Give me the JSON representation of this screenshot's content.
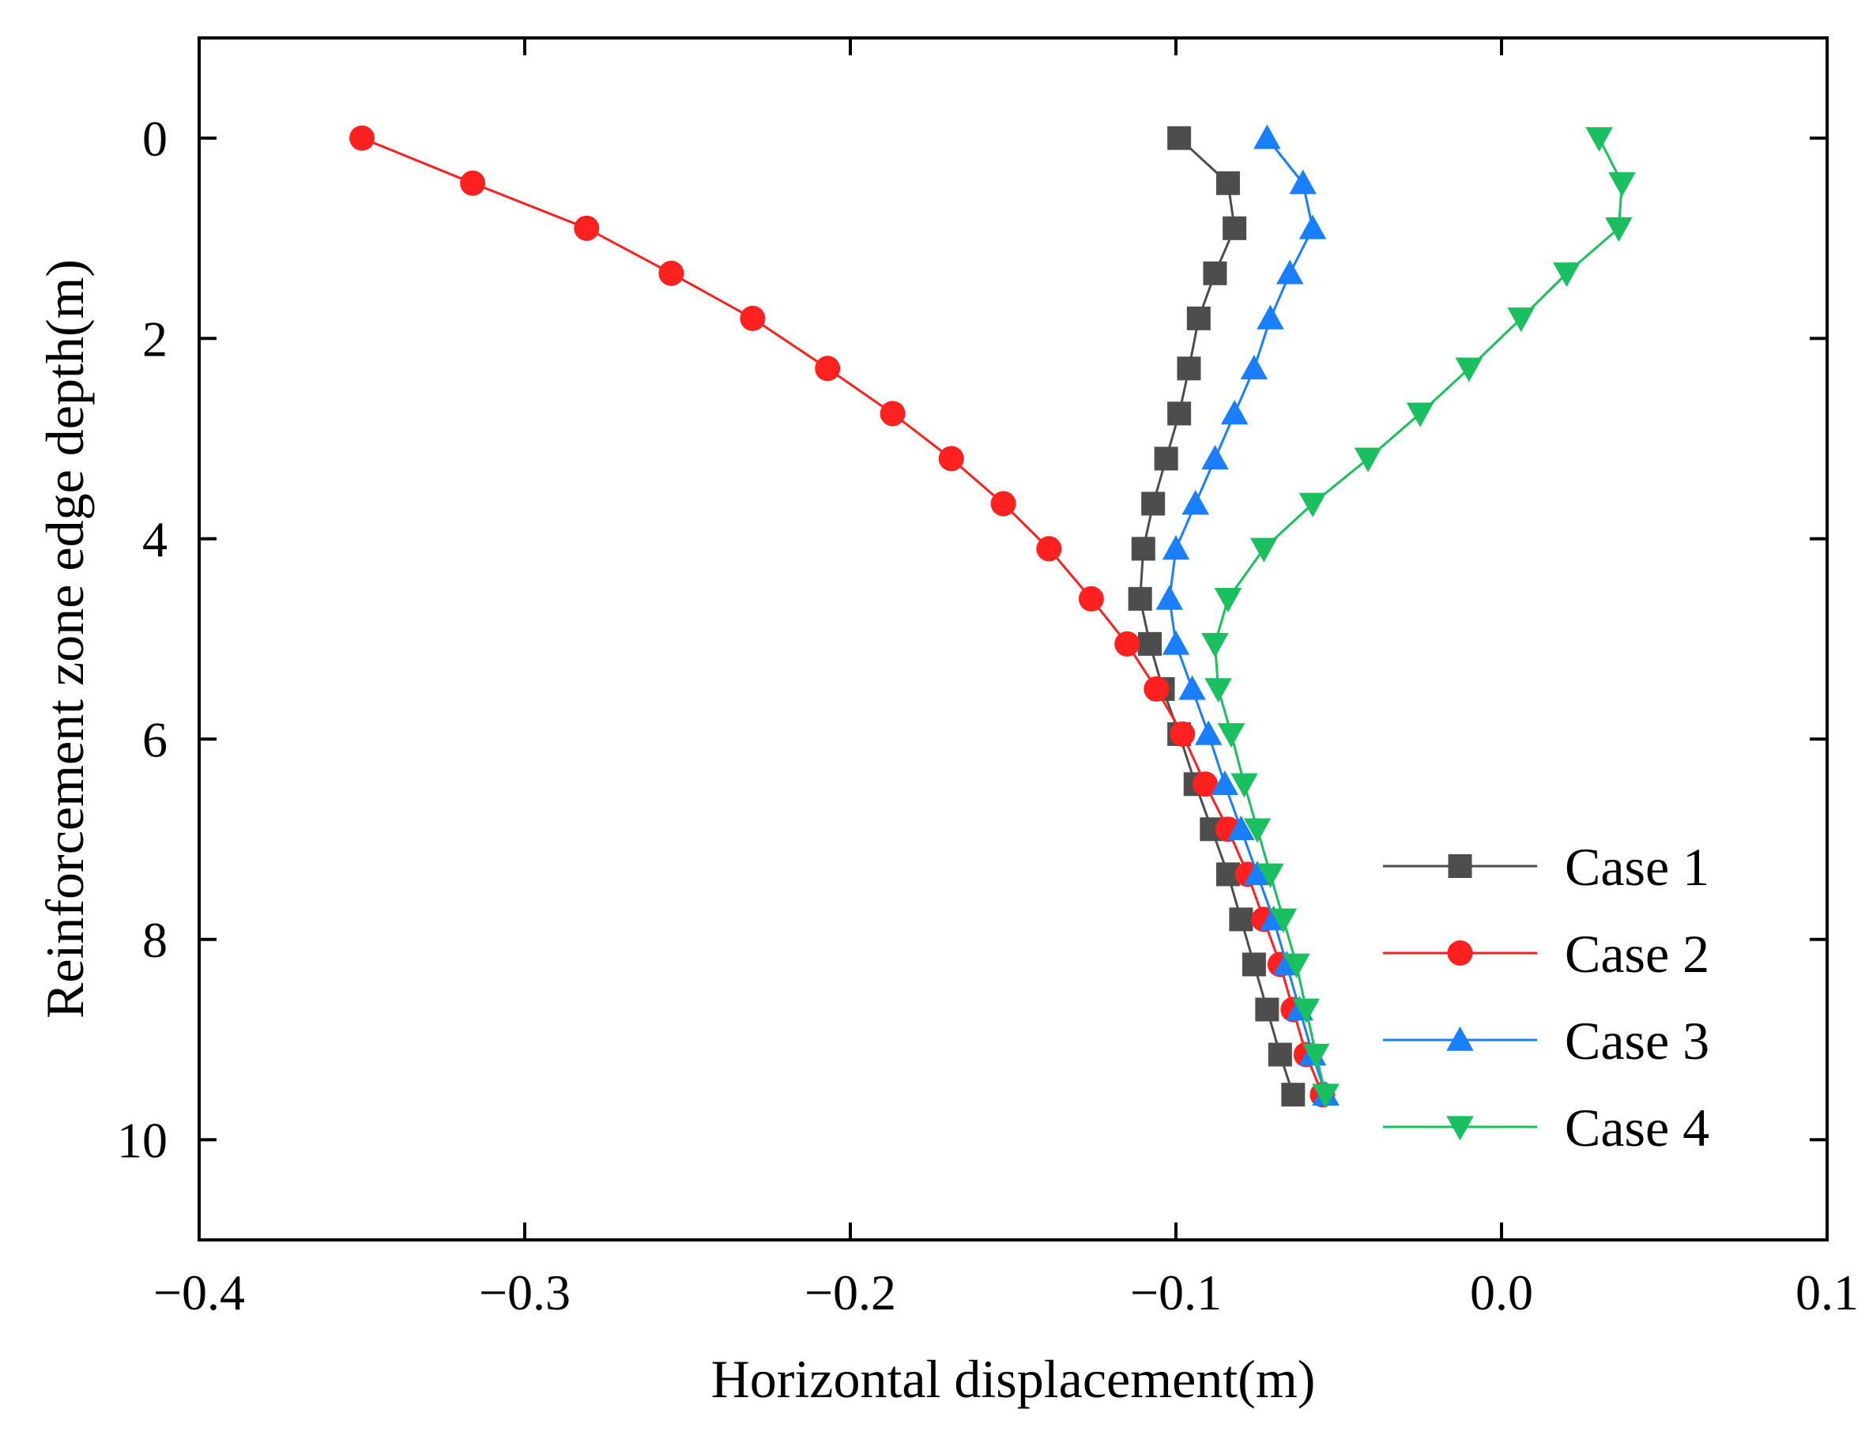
{
  "chart_data": {
    "type": "line",
    "title": "",
    "xlabel": "Horizontal displacement(m)",
    "ylabel": "Reinforcement zone edge depth(m)",
    "xlim": [
      -0.4,
      0.1
    ],
    "ylim": [
      11,
      -1
    ],
    "y_inverted": true,
    "x_ticks": [
      -0.4,
      -0.3,
      -0.2,
      -0.1,
      0.0,
      0.1
    ],
    "x_tick_labels": [
      "−0.4",
      "−0.3",
      "−0.2",
      "−0.1",
      "0.0",
      "0.1"
    ],
    "y_ticks": [
      0,
      2,
      4,
      6,
      8,
      10
    ],
    "y_tick_labels": [
      "0",
      "2",
      "4",
      "6",
      "8",
      "10"
    ],
    "grid": false,
    "legend_position": "bottom-right",
    "depths": [
      0,
      0.45,
      0.9,
      1.35,
      1.8,
      2.3,
      2.75,
      3.2,
      3.65,
      4.1,
      4.6,
      5.05,
      5.5,
      5.95,
      6.45,
      6.9,
      7.35,
      7.8,
      8.25,
      8.7,
      9.15,
      9.55
    ],
    "series": [
      {
        "name": "Case 1",
        "color": "#4d4d4d",
        "marker": "square",
        "x": [
          -0.099,
          -0.084,
          -0.082,
          -0.088,
          -0.093,
          -0.096,
          -0.099,
          -0.103,
          -0.107,
          -0.11,
          -0.111,
          -0.108,
          -0.104,
          -0.099,
          -0.094,
          -0.089,
          -0.084,
          -0.08,
          -0.076,
          -0.072,
          -0.068,
          -0.064
        ]
      },
      {
        "name": "Case 2",
        "color": "#ff2020",
        "marker": "circle",
        "x": [
          -0.35,
          -0.316,
          -0.281,
          -0.255,
          -0.23,
          -0.207,
          -0.187,
          -0.169,
          -0.153,
          -0.139,
          -0.126,
          -0.115,
          -0.106,
          -0.098,
          -0.091,
          -0.084,
          -0.078,
          -0.073,
          -0.068,
          -0.064,
          -0.06,
          -0.055
        ]
      },
      {
        "name": "Case 3",
        "color": "#1a7fff",
        "marker": "triangle-up",
        "x": [
          -0.072,
          -0.061,
          -0.058,
          -0.065,
          -0.071,
          -0.076,
          -0.082,
          -0.088,
          -0.094,
          -0.1,
          -0.102,
          -0.1,
          -0.095,
          -0.09,
          -0.085,
          -0.08,
          -0.075,
          -0.07,
          -0.066,
          -0.062,
          -0.058,
          -0.054
        ]
      },
      {
        "name": "Case 4",
        "color": "#1ac060",
        "marker": "triangle-down",
        "x": [
          0.03,
          0.037,
          0.036,
          0.02,
          0.006,
          -0.01,
          -0.025,
          -0.041,
          -0.058,
          -0.073,
          -0.084,
          -0.088,
          -0.087,
          -0.083,
          -0.079,
          -0.075,
          -0.071,
          -0.067,
          -0.063,
          -0.06,
          -0.057,
          -0.054
        ]
      }
    ]
  }
}
